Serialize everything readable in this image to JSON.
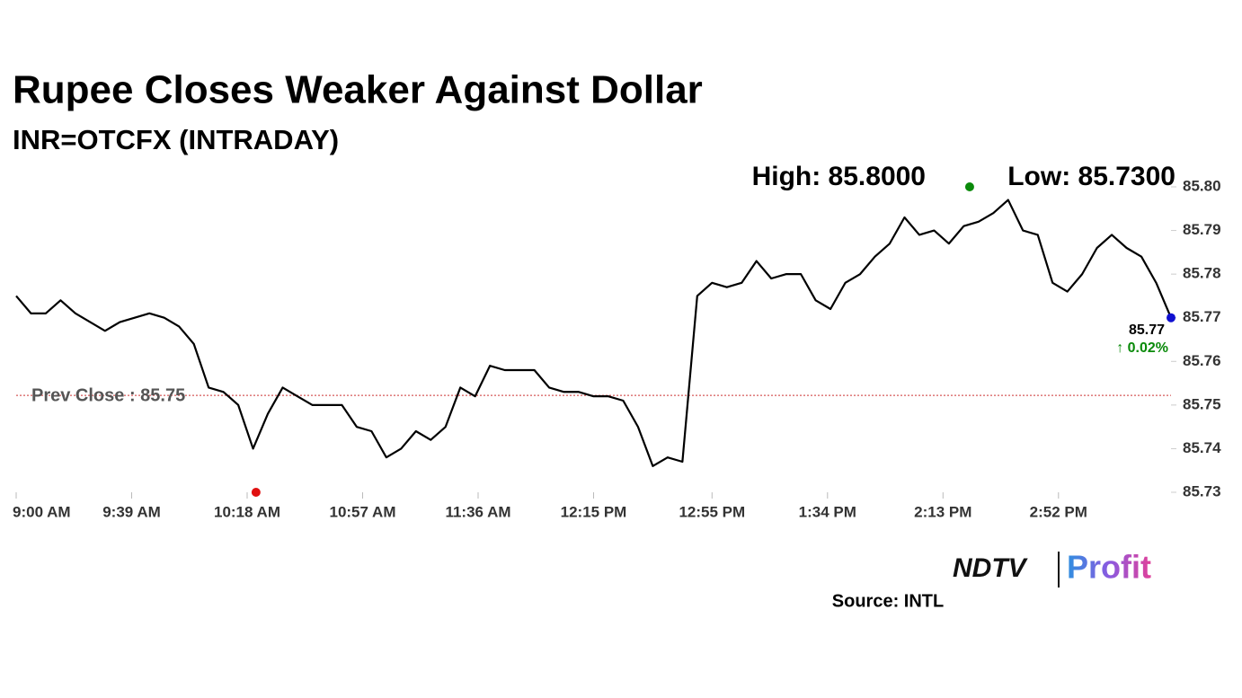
{
  "chart_data": {
    "type": "line",
    "title": "Rupee Closes Weaker Against Dollar",
    "subtitle": "INR=OTCFX (INTRADAY)",
    "x": [
      0,
      5,
      10,
      15,
      20,
      25,
      30,
      35,
      40,
      45,
      50,
      55,
      60,
      65,
      70,
      75,
      80,
      85,
      90,
      95,
      100,
      105,
      110,
      115,
      120,
      125,
      130,
      135,
      140,
      145,
      150,
      155,
      160,
      165,
      170,
      175,
      180,
      185,
      190,
      195,
      200,
      205,
      210,
      215,
      220,
      225,
      230,
      235,
      240,
      245,
      250,
      255,
      260,
      265,
      270,
      275,
      280,
      285,
      290,
      295,
      300,
      305,
      310,
      315,
      320,
      325,
      330,
      335,
      340,
      345,
      350,
      355,
      360,
      365,
      370,
      375,
      380,
      385,
      390
    ],
    "series": [
      {
        "name": "INR=OTCFX",
        "color": "#000000",
        "values": [
          85.775,
          85.771,
          85.771,
          85.774,
          85.771,
          85.769,
          85.767,
          85.769,
          85.77,
          85.771,
          85.77,
          85.768,
          85.764,
          85.754,
          85.753,
          85.75,
          85.74,
          85.748,
          85.754,
          85.752,
          85.75,
          85.75,
          85.75,
          85.745,
          85.744,
          85.738,
          85.74,
          85.744,
          85.742,
          85.745,
          85.754,
          85.752,
          85.759,
          85.758,
          85.758,
          85.758,
          85.754,
          85.753,
          85.753,
          85.752,
          85.752,
          85.751,
          85.745,
          85.736,
          85.738,
          85.737,
          85.775,
          85.778,
          85.777,
          85.778,
          85.783,
          85.779,
          85.78,
          85.78,
          85.774,
          85.772,
          85.778,
          85.78,
          85.784,
          85.787,
          85.793,
          85.789,
          85.79,
          85.787,
          85.791,
          85.792,
          85.794,
          85.797,
          85.79,
          85.789,
          85.778,
          85.776,
          85.78,
          85.786,
          85.789,
          85.786,
          85.784,
          85.778,
          85.77
        ]
      }
    ],
    "xlim": [
      0,
      390
    ],
    "xticks": [
      {
        "value": 0,
        "label": "9:00 AM"
      },
      {
        "value": 39,
        "label": "9:39 AM"
      },
      {
        "value": 78,
        "label": "10:18 AM"
      },
      {
        "value": 117,
        "label": "10:57 AM"
      },
      {
        "value": 156,
        "label": "11:36 AM"
      },
      {
        "value": 195,
        "label": "12:15 PM"
      },
      {
        "value": 235,
        "label": "12:55 PM"
      },
      {
        "value": 274,
        "label": "1:34 PM"
      },
      {
        "value": 313,
        "label": "2:13 PM"
      },
      {
        "value": 352,
        "label": "2:52 PM"
      }
    ],
    "ylim": [
      85.73,
      85.8
    ],
    "yticks": [
      85.73,
      85.74,
      85.75,
      85.76,
      85.77,
      85.78,
      85.79,
      {
        "value": 85.8,
        "label": "85.80"
      }
    ],
    "high": {
      "x": 322,
      "value": 85.8,
      "label": "High: 85.8000",
      "color": "#0a8a0a"
    },
    "low": {
      "x": 81,
      "value": 85.73,
      "label": "Low: 85.7300",
      "color": "#e01010"
    },
    "last": {
      "x": 390,
      "value": 85.77,
      "label": "85.77",
      "change_label": "↑ 0.02%",
      "color": "#1010d0",
      "change_color": "#0a8a0a"
    },
    "prev_close": {
      "value": 85.7522,
      "label": "Prev Close : 85.75",
      "color": "#cc3333"
    },
    "logo": {
      "left": "NDTV",
      "right": "Profit"
    },
    "source": "Source: INTL"
  }
}
